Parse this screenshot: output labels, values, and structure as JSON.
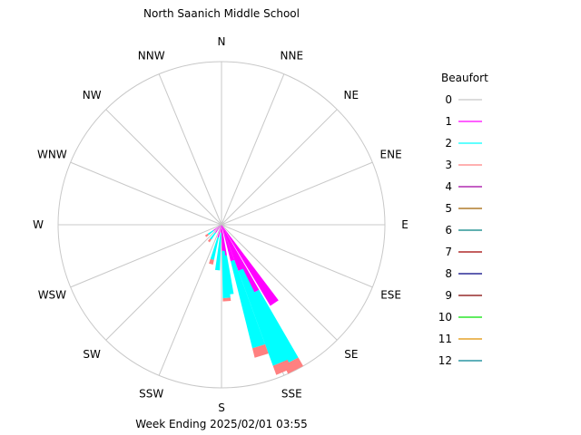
{
  "chart_data": {
    "type": "windrose",
    "title": "North Saanich Middle School",
    "footer": "Week Ending 2025/02/01 03:55",
    "directions": [
      "N",
      "NNE",
      "NE",
      "ENE",
      "E",
      "ESE",
      "SE",
      "SSE",
      "S",
      "SSW",
      "SW",
      "WSW",
      "W",
      "WNW",
      "NW",
      "NNW"
    ],
    "legend_title": "Beaufort",
    "legend": [
      {
        "label": "0",
        "color": "#c8c8c8"
      },
      {
        "label": "1",
        "color": "#ff00ff"
      },
      {
        "label": "2",
        "color": "#00ffff"
      },
      {
        "label": "3",
        "color": "#ff8080"
      },
      {
        "label": "4",
        "color": "#a000a0"
      },
      {
        "label": "5",
        "color": "#a06000"
      },
      {
        "label": "6",
        "color": "#008080"
      },
      {
        "label": "7",
        "color": "#a00000"
      },
      {
        "label": "8",
        "color": "#000080"
      },
      {
        "label": "9",
        "color": "#800000"
      },
      {
        "label": "10",
        "color": "#00e000"
      },
      {
        "label": "11",
        "color": "#e09000"
      },
      {
        "label": "12",
        "color": "#008090"
      }
    ],
    "r_max": 100,
    "grid": true,
    "petals": [
      {
        "angle": 146,
        "b1": 58,
        "b2": 58,
        "b3": 58
      },
      {
        "angle": 153,
        "b1": 46,
        "b2": 94,
        "b3": 100
      },
      {
        "angle": 157,
        "b1": 30,
        "b2": 92,
        "b3": 98
      },
      {
        "angle": 163,
        "b1": 23,
        "b2": 78,
        "b3": 84
      },
      {
        "angle": 173,
        "b1": 19,
        "b2": 43,
        "b3": 43
      },
      {
        "angle": 176,
        "b1": 16,
        "b2": 45,
        "b3": 47
      },
      {
        "angle": 185,
        "b1": 5,
        "b2": 28,
        "b3": 28
      },
      {
        "angle": 195,
        "b1": 8,
        "b2": 22,
        "b3": 25
      },
      {
        "angle": 217,
        "b1": 6,
        "b2": 11,
        "b3": 13
      },
      {
        "angle": 234,
        "b1": 6,
        "b2": 10,
        "b3": 12
      }
    ]
  }
}
